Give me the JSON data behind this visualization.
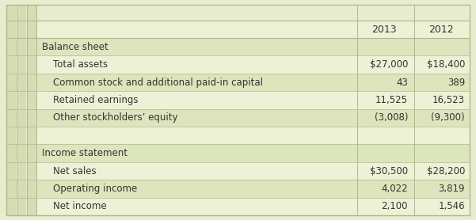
{
  "header_cols": [
    "2013",
    "2012"
  ],
  "rows": [
    {
      "label": "Balance sheet",
      "val2013": "",
      "val2012": "",
      "indent": 0,
      "is_section": true
    },
    {
      "label": "Total assets",
      "val2013": "$27,000",
      "val2012": "$18,400",
      "indent": 1,
      "is_section": false
    },
    {
      "label": "Common stock and additional paid-in capital",
      "val2013": "43",
      "val2012": "389",
      "indent": 1,
      "is_section": false
    },
    {
      "label": "Retained earnings",
      "val2013": "11,525",
      "val2012": "16,523",
      "indent": 1,
      "is_section": false
    },
    {
      "label": "Other stockholders’ equity",
      "val2013": "(3,008)",
      "val2012": "(9,300)",
      "indent": 1,
      "is_section": false
    },
    {
      "label": "",
      "val2013": "",
      "val2012": "",
      "indent": 0,
      "is_section": false
    },
    {
      "label": "Income statement",
      "val2013": "",
      "val2012": "",
      "indent": 0,
      "is_section": true
    },
    {
      "label": "Net sales",
      "val2013": "$30,500",
      "val2012": "$28,200",
      "indent": 1,
      "is_section": false
    },
    {
      "label": "Operating income",
      "val2013": "4,022",
      "val2012": "3,819",
      "indent": 1,
      "is_section": false
    },
    {
      "label": "Net income",
      "val2013": "2,100",
      "val2012": "1,546",
      "indent": 1,
      "is_section": false
    }
  ],
  "outer_bg": "#e8edcf",
  "band_bg": "#d6ddb4",
  "row_colors": [
    "#dce5bb",
    "#edf2d6",
    "#dce5bb",
    "#edf2d6",
    "#dce5bb",
    "#edf2d6",
    "#dce5bb",
    "#edf2d6",
    "#dce5bb",
    "#edf2d6"
  ],
  "header_bg": "#edf2d6",
  "border_color": "#b0b890",
  "text_color": "#333333",
  "font_size": 8.5,
  "header_font_size": 9.0
}
